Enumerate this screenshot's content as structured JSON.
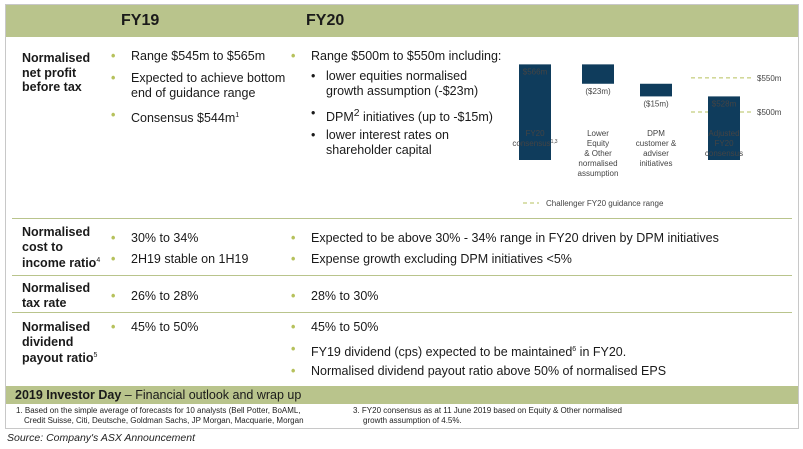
{
  "header": {
    "fy19": "FY19",
    "fy20": "FY20"
  },
  "rows": {
    "npbt": {
      "label": [
        "Normalised",
        "net profit",
        "before tax"
      ],
      "fy19": [
        "Range $545m to $565m",
        "Expected to achieve bottom",
        "end of guidance range",
        "Consensus $544m"
      ],
      "fy19_sup": "1",
      "fy20_main": "Range $500m to $550m including:",
      "fy20_sub": [
        "lower equities normalised",
        "growth assumption (-$23m)",
        "DPM",
        " initiatives (up to -$15m)",
        "lower interest rates on",
        "shareholder capital"
      ],
      "fy20_sub_sup": "2"
    },
    "cti": {
      "label": [
        "Normalised",
        "cost to",
        "income ratio"
      ],
      "label_sup": "4",
      "fy19": [
        "30% to 34%",
        "2H19 stable on 1H19"
      ],
      "fy20": [
        "Expected to be above 30% - 34% range in FY20 driven by DPM initiatives",
        "Expense growth excluding DPM initiatives <5%"
      ]
    },
    "tax": {
      "label": [
        "Normalised",
        "tax rate"
      ],
      "fy19": [
        "26% to 28%"
      ],
      "fy20": [
        "28% to 30%"
      ]
    },
    "div": {
      "label": [
        "Normalised",
        "dividend",
        "payout ratio"
      ],
      "label_sup": "5",
      "fy19": [
        "45% to 50%"
      ],
      "fy20": [
        "45% to 50%",
        "FY19 dividend (cps) expected to be maintained",
        " in FY20.",
        "Normalised dividend payout ratio above 50% of normalised EPS"
      ],
      "fy20_sup": "6"
    }
  },
  "chart_data": {
    "type": "bar",
    "subtype": "waterfall",
    "categories": [
      "FY20 consensus",
      "Lower Equity & Other normalised assumption",
      "DPM customer & adviser initiatives",
      "Adjusted FY20 consensus"
    ],
    "category_lines": [
      [
        "FY20",
        "consensus"
      ],
      [
        "Lower",
        "Equity",
        "& Other",
        "normalised",
        "assumption"
      ],
      [
        "DPM",
        "customer &",
        "adviser",
        "initiatives"
      ],
      [
        "Adjusted",
        "FY20",
        "consensus"
      ]
    ],
    "category_sup": "1,3",
    "values": [
      566,
      -23,
      -15,
      528
    ],
    "value_labels": [
      "$566m",
      "($23m)",
      "($15m)",
      "$528m"
    ],
    "reference_lines": [
      {
        "label": "$550m",
        "value": 550
      },
      {
        "label": "$500m",
        "value": 500
      }
    ],
    "legend": "Challenger FY20 guidance range",
    "colors": {
      "bar": "#0f3c5c",
      "guidance": "#b6c15c"
    }
  },
  "footer": {
    "title": "2019 Investor Day",
    "subtitle": " – Financial outlook and wrap up",
    "note1": [
      "1. Based on the simple average of forecasts for 10 analysts (Bell Potter, BoAML,",
      "Credit Suisse, Citi, Deutsche, Goldman Sachs, JP Morgan, Macquarie, Morgan"
    ],
    "note3": [
      "3. FY20 consensus as at 11 June 2019 based on Equity & Other normalised",
      "growth assumption of 4.5%."
    ]
  },
  "source": "Source: Company's ASX Announcement",
  "colors": {
    "band": "#b9c48c",
    "bullet": "#b6c15c",
    "navy": "#0f3c5c"
  }
}
